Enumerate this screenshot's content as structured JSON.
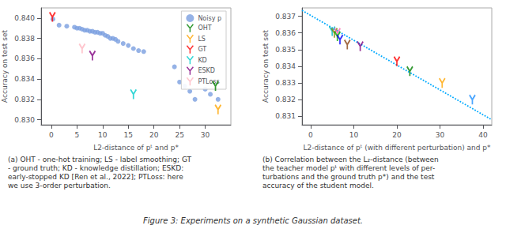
{
  "chart_data": [
    {
      "type": "scatter",
      "x_label": "L2-distance of pᵗ and p*",
      "y_label": "Accuracy on test set",
      "xlim": [
        -2,
        35
      ],
      "xticks": [
        0,
        5,
        10,
        15,
        20,
        25,
        30
      ],
      "ylim": [
        0.8295,
        0.841
      ],
      "yticks": [
        {
          "value": 0.83,
          "label": "0.830"
        },
        0.832,
        0.834,
        0.836,
        0.838,
        {
          "value": 0.84,
          "label": "0.840"
        }
      ],
      "grid": false,
      "legend": "upper right",
      "annotations": [
        "(a) OHT - one-hot training; LS - label smoothing; GT\n- ground truth; KD - knowledge distillation; ESKD:\nearly-stopped KD [Ren et al., 2022]; PTLoss: here\nwe use 3-order perturbation."
      ],
      "series": [
        {
          "name": "Noisy p",
          "type": "scatter",
          "marker": "circle",
          "color": "#7B9FE0",
          "x": [
            0.3,
            1.5,
            3.0,
            4.5,
            5.0,
            5.5,
            6.0,
            6.5,
            7.0,
            7.5,
            8.0,
            8.5,
            9.0,
            9.5,
            10.0,
            10.5,
            11.0,
            11.5,
            12.0,
            12.5,
            13.0,
            14.0,
            15.0,
            16.0,
            17.0,
            18.0,
            24.0,
            25.0,
            26.0,
            27.0,
            28.0,
            30.0,
            31.0,
            32.5
          ],
          "values": [
            0.8399,
            0.8393,
            0.8392,
            0.8391,
            0.839,
            0.839,
            0.8389,
            0.8388,
            0.8388,
            0.8387,
            0.8387,
            0.8386,
            0.8386,
            0.8385,
            0.8385,
            0.8383,
            0.8382,
            0.838,
            0.838,
            0.8379,
            0.8377,
            0.8375,
            0.8373,
            0.837,
            0.8368,
            0.8367,
            0.8352,
            0.8337,
            0.8333,
            0.8328,
            0.832,
            0.833,
            0.8325,
            0.832
          ]
        },
        {
          "name": "OHT",
          "type": "scatter",
          "marker": "Y",
          "color": "#008000",
          "x": [
            32.0
          ],
          "values": [
            0.8333
          ]
        },
        {
          "name": "LS",
          "type": "scatter",
          "marker": "Y",
          "color": "#FFA500",
          "x": [
            32.5
          ],
          "values": [
            0.831
          ]
        },
        {
          "name": "GT",
          "type": "scatter",
          "marker": "Y",
          "color": "#FF0000",
          "x": [
            0.2
          ],
          "values": [
            0.8401
          ]
        },
        {
          "name": "KD",
          "type": "scatter",
          "marker": "Y",
          "color": "#00CCCC",
          "x": [
            16.0
          ],
          "values": [
            0.8325
          ]
        },
        {
          "name": "ESKD",
          "type": "scatter",
          "marker": "Y",
          "color": "#800080",
          "x": [
            8.0
          ],
          "values": [
            0.8363
          ]
        },
        {
          "name": "PTLoss",
          "type": "scatter",
          "marker": "Y",
          "color": "#FFB6C1",
          "x": [
            6.0
          ],
          "values": [
            0.837
          ]
        }
      ]
    },
    {
      "type": "scatter",
      "x_label": "L2-distance of pᵗ (with different perturbation) and p*",
      "y_label": "Accuracy on test set",
      "xlim": [
        -2,
        42
      ],
      "xticks": [
        0,
        10,
        20,
        30,
        40
      ],
      "ylim": [
        0.8305,
        0.8375
      ],
      "yticks": [
        0.831,
        0.832,
        0.833,
        0.834,
        0.835,
        0.836,
        0.837
      ],
      "grid": false,
      "annotations": [
        "(b) Correlation between the L₂-distance (between\nthe teacher model pᵗ with different levels of per-\nturbations and the ground truth p*) and the test\naccuracy of the student model."
      ],
      "series": [
        {
          "type": "line",
          "line_style": "dotted",
          "color": "#00AAFF",
          "x": [
            -2,
            42
          ],
          "values": [
            0.83735,
            0.8308
          ]
        },
        {
          "type": "scatter",
          "marker": "Y",
          "colors": [
            "#00BBBB",
            "#808000",
            "#FF69B4",
            "#00AA00",
            "#0000FF",
            "#8B4513",
            "#800080",
            "#FF0000",
            "#008000",
            "#FFA500",
            "#1E90FF"
          ],
          "x": [
            5.0,
            5.5,
            6.2,
            6.2,
            6.8,
            8.5,
            11.5,
            20.0,
            23.0,
            30.5,
            37.5
          ],
          "values": [
            0.8361,
            0.836,
            0.836,
            0.8358,
            0.8356,
            0.8353,
            0.8352,
            0.8343,
            0.8337,
            0.833,
            0.832
          ]
        }
      ]
    }
  ],
  "caption": "Figure 3: Experiments on a synthetic Gaussian dataset."
}
